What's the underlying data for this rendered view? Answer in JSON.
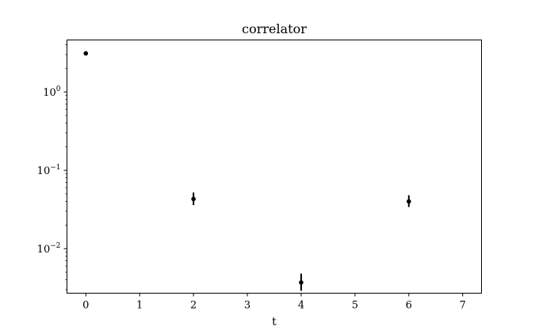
{
  "chart_data": {
    "type": "scatter",
    "title": "correlator",
    "xlabel": "t",
    "ylabel": "",
    "xlim": [
      -0.35,
      7.35
    ],
    "ylim": [
      0.0027,
      4.6
    ],
    "yscale": "log",
    "grid": false,
    "x_ticks": [
      0,
      1,
      2,
      3,
      4,
      5,
      6,
      7
    ],
    "x_tick_labels": [
      "0",
      "1",
      "2",
      "3",
      "4",
      "5",
      "6",
      "7"
    ],
    "y_major_ticks": [
      0.01,
      0.1,
      1
    ],
    "y_tick_labels": [
      {
        "base": "10",
        "exp": "−2"
      },
      {
        "base": "10",
        "exp": "−1"
      },
      {
        "base": "10",
        "exp": "0"
      }
    ],
    "points": [
      {
        "x": 0,
        "y": 3.1,
        "yerr_low": 3.1,
        "yerr_high": 3.1
      },
      {
        "x": 2,
        "y": 0.043,
        "yerr_low": 0.036,
        "yerr_high": 0.052
      },
      {
        "x": 4,
        "y": 0.0037,
        "yerr_low": 0.0029,
        "yerr_high": 0.0048
      },
      {
        "x": 6,
        "y": 0.04,
        "yerr_low": 0.034,
        "yerr_high": 0.048
      }
    ],
    "marker_color": "#000000"
  }
}
